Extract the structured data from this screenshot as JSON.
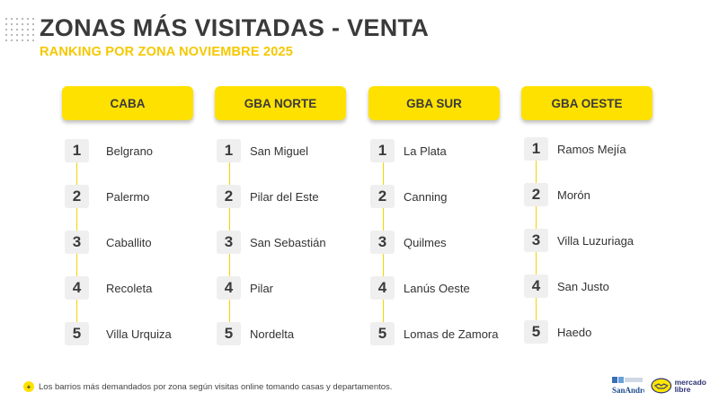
{
  "header": {
    "title": "ZONAS MÁS VISITADAS - VENTA",
    "subtitle": "RANKING POR ZONA NOVIEMBRE 2025"
  },
  "zones": [
    {
      "name": "CABA",
      "ranking": [
        {
          "rank": "1",
          "name": "Belgrano"
        },
        {
          "rank": "2",
          "name": "Palermo"
        },
        {
          "rank": "3",
          "name": "Caballito"
        },
        {
          "rank": "4",
          "name": "Recoleta"
        },
        {
          "rank": "5",
          "name": "Villa Urquiza"
        }
      ]
    },
    {
      "name": "GBA NORTE",
      "ranking": [
        {
          "rank": "1",
          "name": "San Miguel"
        },
        {
          "rank": "2",
          "name": "Pilar del Este"
        },
        {
          "rank": "3",
          "name": "San Sebastián"
        },
        {
          "rank": "4",
          "name": "Pilar"
        },
        {
          "rank": "5",
          "name": "Nordelta"
        }
      ]
    },
    {
      "name": "GBA SUR",
      "ranking": [
        {
          "rank": "1",
          "name": "La Plata"
        },
        {
          "rank": "2",
          "name": "Canning"
        },
        {
          "rank": "3",
          "name": "Quilmes"
        },
        {
          "rank": "4",
          "name": "Lanús Oeste"
        },
        {
          "rank": "5",
          "name": "Lomas de Zamora"
        }
      ]
    },
    {
      "name": "GBA OESTE",
      "ranking": [
        {
          "rank": "1",
          "name": "Ramos Mejía"
        },
        {
          "rank": "2",
          "name": "Morón"
        },
        {
          "rank": "3",
          "name": "Villa Luzuriaga"
        },
        {
          "rank": "4",
          "name": "San Justo"
        },
        {
          "rank": "5",
          "name": "Haedo"
        }
      ]
    }
  ],
  "footer": {
    "bullet": "+",
    "note": "Los barrios más demandados por zona según visitas online tomando casas y departamentos.",
    "logo_sanandres": "SanAndres",
    "logo_mercadolibre_line1": "mercado",
    "logo_mercadolibre_line2": "libre"
  },
  "colors": {
    "accent_yellow": "#ffe100",
    "subtitle_yellow": "#f5c800",
    "title_gray": "#3a3a3a",
    "rank_box_bg": "#efefef",
    "ml_blue": "#2d3277"
  },
  "icons": {
    "decor": "dot-grid-icon",
    "bullet": "plus-circle-icon",
    "logo_left": "san-andres-logo",
    "logo_right": "mercado-libre-logo"
  }
}
